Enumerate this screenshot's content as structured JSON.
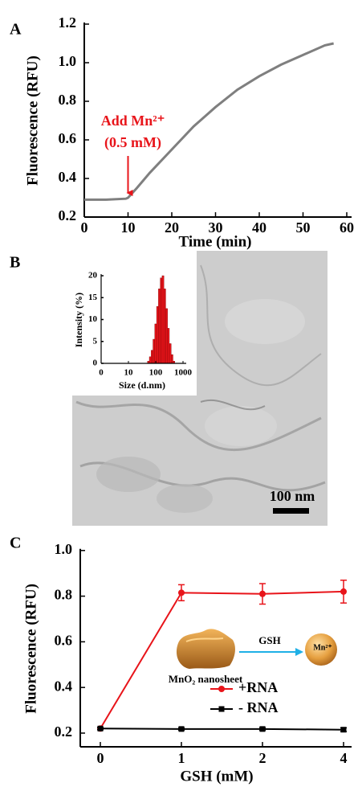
{
  "chart_data": [
    {
      "type": "line",
      "panel_label": "A",
      "x": [
        0,
        5,
        9.5,
        10,
        12,
        15,
        20,
        25,
        30,
        35,
        40,
        45,
        50,
        55,
        57
      ],
      "values": [
        0.29,
        0.29,
        0.295,
        0.3,
        0.35,
        0.43,
        0.55,
        0.67,
        0.77,
        0.86,
        0.93,
        0.99,
        1.04,
        1.09,
        1.1
      ],
      "color": "#7f7f7f",
      "xlim": [
        0,
        60
      ],
      "xticks": [
        0,
        10,
        20,
        30,
        40,
        50,
        60
      ],
      "ylim": [
        0.2,
        1.2
      ],
      "yticks": [
        0.2,
        0.4,
        0.6,
        0.8,
        {
          "value": 1,
          "label": "1.0"
        },
        1.2
      ],
      "xlabel": "Time (min)",
      "ylabel": "Fluorescence (RFU)",
      "annotation": {
        "text": [
          "Add Mn²⁺",
          "(0.5 mM)"
        ],
        "x": 10,
        "color": "#e8141a"
      }
    },
    {
      "type": "image",
      "panel_label": "B",
      "scale_bar": "100 nm",
      "inset": {
        "type": "histogram",
        "bins": [
          50,
          58.3,
          68.0,
          79.2,
          92.4,
          107.7,
          125.6,
          146.4,
          170.7,
          199.0,
          232.1,
          270.6,
          315.5,
          367.8,
          428.9,
          500
        ],
        "values": [
          0.5,
          1.5,
          3,
          5.5,
          9,
          13,
          17,
          19.5,
          20,
          17,
          12.5,
          8,
          4.5,
          2,
          0.5
        ],
        "color": "#e8141a",
        "xscale": "log",
        "xlim": [
          1,
          1000
        ],
        "xticks": [
          10,
          100,
          1000
        ],
        "x_origin_label": "0",
        "ylim": [
          0,
          20
        ],
        "yticks": [
          0,
          5,
          10,
          15,
          20
        ],
        "xlabel": "Size (d.nm)",
        "ylabel": "Intensity (%)"
      }
    },
    {
      "type": "line",
      "panel_label": "C",
      "categories": [
        "0",
        "1",
        "2",
        "4"
      ],
      "series": [
        {
          "name": "+RNA",
          "color": "#e8141a",
          "marker": "circle",
          "values": [
            0.22,
            0.815,
            0.81,
            0.82
          ],
          "errors": [
            0.005,
            0.035,
            0.045,
            0.05
          ]
        },
        {
          "name": "- RNA",
          "color": "#000000",
          "marker": "square",
          "values": [
            0.22,
            0.218,
            0.218,
            0.215
          ],
          "errors": [
            0.005,
            0.005,
            0.006,
            0.008
          ]
        }
      ],
      "ylim": [
        0.14,
        1.0
      ],
      "yticks": [
        0.2,
        0.4,
        0.6,
        0.8,
        {
          "value": 1,
          "label": "1.0"
        }
      ],
      "xlabel": "GSH (mM)",
      "ylabel": "Fluorescence (RFU)",
      "schematic_labels": {
        "sheet": "MnO₂ nanosheet",
        "reagent": "GSH",
        "ion": "Mn²⁺"
      }
    }
  ]
}
